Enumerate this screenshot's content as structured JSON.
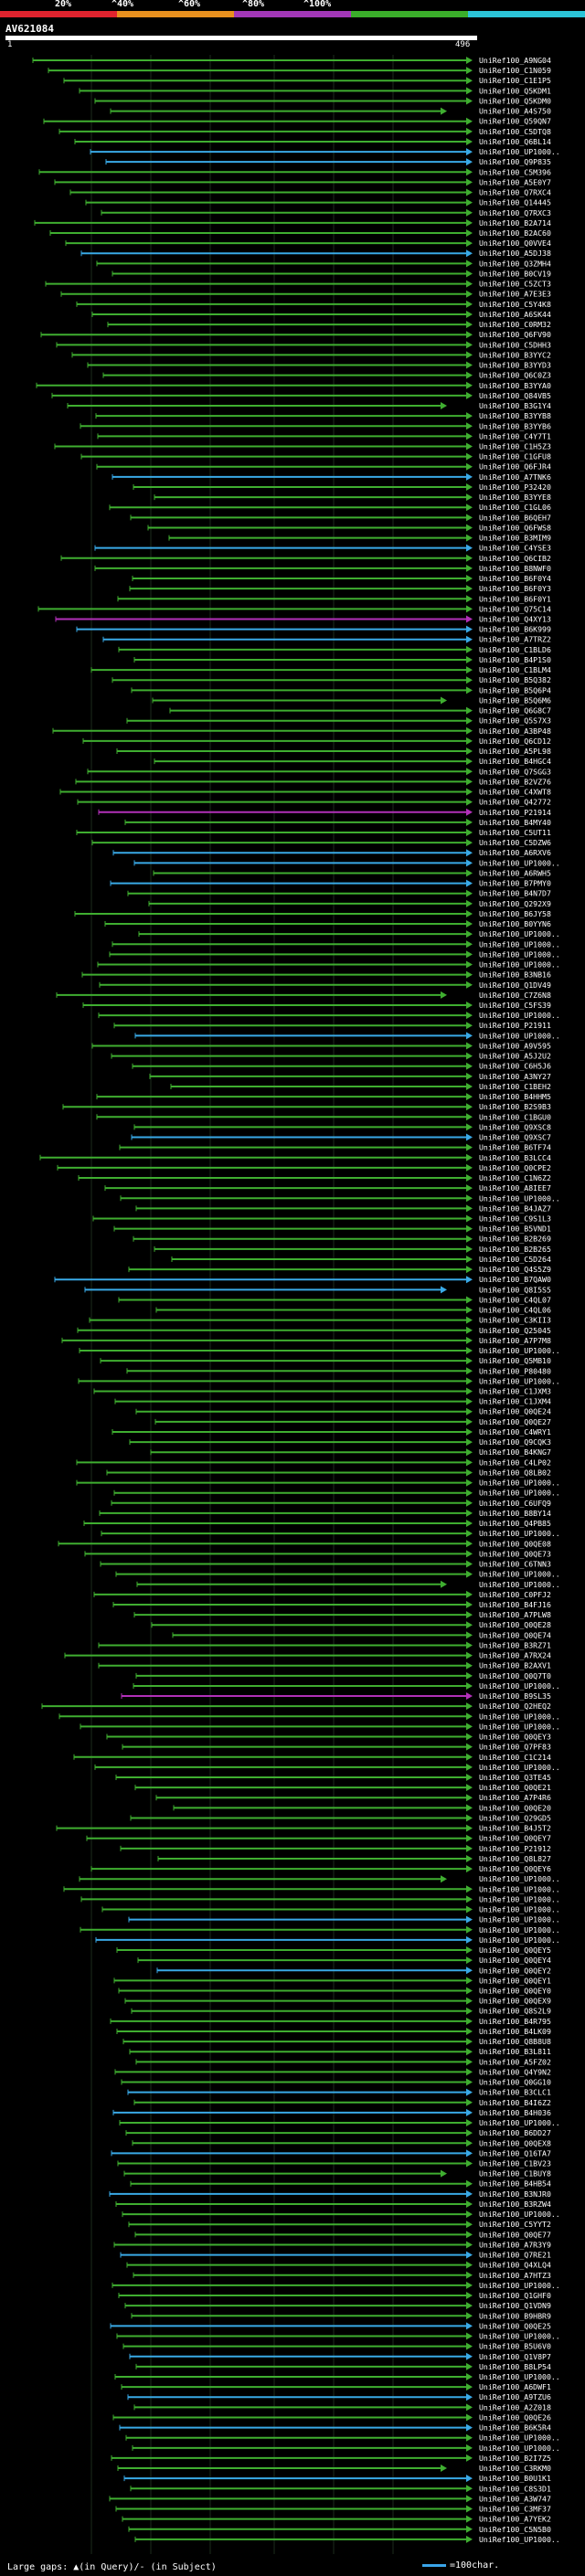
{
  "legend": {
    "segments": [
      {
        "label": "20%",
        "color": "#e0232e"
      },
      {
        "label": "^40%",
        "color": "#e8901e"
      },
      {
        "label": "^60%",
        "color": "#a337b8"
      },
      {
        "label": "^80%",
        "color": "#3aae2a"
      },
      {
        "label": "^100%",
        "color": "#2bc4d8"
      }
    ]
  },
  "query": {
    "id": "AV621084",
    "start": "1",
    "end": "496"
  },
  "footer": {
    "gaps_text": "Large gaps: ▲(in Query)/- (in Subject)",
    "scale_text": "=100char."
  },
  "colors": {
    "green": "#3fae30",
    "cyan": "#39a9e6",
    "magenta": "#b230b9",
    "white": "#ffffff"
  },
  "hits": [
    "UniRef100_A9NG04",
    "UniRef100_C1N059",
    "UniRef100_C1E1P5",
    "UniRef100_Q5KDM1",
    "UniRef100_Q5KDM0",
    "UniRef100_A4S750",
    "UniRef100_Q59QN7",
    "UniRef100_C5DTQ8",
    "UniRef100_Q6BL14",
    "UniRef100_UP1000..",
    "UniRef100_Q9P835",
    "UniRef100_C5M396",
    "UniRef100_A5E0Y7",
    "UniRef100_Q7RXC4",
    "UniRef100_Q14445",
    "UniRef100_Q7RXC3",
    "UniRef100_B2A714",
    "UniRef100_B2AC60",
    "UniRef100_Q0VVE4",
    "UniRef100_A5DJ38",
    "UniRef100_Q3ZMH4",
    "UniRef100_B0CV19",
    "UniRef100_C5ZCT3",
    "UniRef100_A7E3E3",
    "UniRef100_C5Y4K8",
    "UniRef100_A6SK44",
    "UniRef100_C0RM32",
    "UniRef100_Q6FV90",
    "UniRef100_C5DHH3",
    "UniRef100_B3YYC2",
    "UniRef100_B3YYD3",
    "UniRef100_Q6C0Z3",
    "UniRef100_B3YYA0",
    "UniRef100_Q84VB5",
    "UniRef100_B3G1Y4",
    "UniRef100_B3YYB8",
    "UniRef100_B3YYB6",
    "UniRef100_C4Y7T1",
    "UniRef100_C1H5Z3",
    "UniRef100_C1GFU8",
    "UniRef100_Q6FJR4",
    "UniRef100_A7TNK6",
    "UniRef100_P32420",
    "UniRef100_B3YYE8",
    "UniRef100_C1GL06",
    "UniRef100_B6QEH7",
    "UniRef100_Q6FWS8",
    "UniRef100_B3MIM9",
    "UniRef100_C4YSE3",
    "UniRef100_Q6CIB2",
    "UniRef100_B8NWF0",
    "UniRef100_B6F0Y4",
    "UniRef100_B6F0Y3",
    "UniRef100_B6F0Y1",
    "UniRef100_Q75C14",
    "UniRef100_Q4XY13",
    "UniRef100_B6K999",
    "UniRef100_A7TRZ2",
    "UniRef100_C1BLD6",
    "UniRef100_B4P1S0",
    "UniRef100_C1BLM4",
    "UniRef100_B5Q382",
    "UniRef100_B5Q6P4",
    "UniRef100_B5Q6M6",
    "UniRef100_Q6G8C7",
    "UniRef100_Q5S7X3",
    "UniRef100_A3BP48",
    "UniRef100_Q6CD12",
    "UniRef100_A5PL98",
    "UniRef100_B4HGC4",
    "UniRef100_Q7SGG3",
    "UniRef100_B2VZ76",
    "UniRef100_C4XWT8",
    "UniRef100_Q42772",
    "UniRef100_P21914",
    "UniRef100_B4MY40",
    "UniRef100_C5UT11",
    "UniRef100_C5DZW6",
    "UniRef100_A6RXV6",
    "UniRef100_UP1000..",
    "UniRef100_A6RWH5",
    "UniRef100_B7PMY0",
    "UniRef100_B4N7D7",
    "UniRef100_Q292X9",
    "UniRef100_B6JY58",
    "UniRef100_B0YYN6",
    "UniRef100_UP1000..",
    "UniRef100_UP1000..",
    "UniRef100_UP1000..",
    "UniRef100_UP1000..",
    "UniRef100_B3NB16",
    "UniRef100_Q1DV49",
    "UniRef100_C7Z6N8",
    "UniRef100_C5FS39",
    "UniRef100_UP1000..",
    "UniRef100_P21911",
    "UniRef100_UP1000..",
    "UniRef100_A9V595",
    "UniRef100_A5J2U2",
    "UniRef100_C6H5J6",
    "UniRef100_A3NY27",
    "UniRef100_C1BEH2",
    "UniRef100_B4HHM5",
    "UniRef100_B2S9B3",
    "UniRef100_C1BGU0",
    "UniRef100_Q9XSC8",
    "UniRef100_Q9XSC7",
    "UniRef100_B6TF74",
    "UniRef100_B3LCC4",
    "UniRef100_Q0CPE2",
    "UniRef100_C1N6Z2",
    "UniRef100_A8IEE7",
    "UniRef100_UP1000..",
    "UniRef100_B4JAZ7",
    "UniRef100_C9S1L3",
    "UniRef100_B5VND1",
    "UniRef100_B2B269",
    "UniRef100_B2B265",
    "UniRef100_C5D264",
    "UniRef100_Q4S5Z9",
    "UniRef100_B7QAW0",
    "UniRef100_Q8I5S5",
    "UniRef100_C4QL07",
    "UniRef100_C4QL06",
    "UniRef100_C3KII3",
    "UniRef100_Q25045",
    "UniRef100_A7P7M8",
    "UniRef100_UP1000..",
    "UniRef100_Q5MB10",
    "UniRef100_P80480",
    "UniRef100_UP1000..",
    "UniRef100_C1JXM3",
    "UniRef100_C1JXM4",
    "UniRef100_Q0QE24",
    "UniRef100_Q0QE27",
    "UniRef100_C4WRY1",
    "UniRef100_Q9CQK3",
    "UniRef100_B4KNG7",
    "UniRef100_C4LP02",
    "UniRef100_Q8LB02",
    "UniRef100_UP1000..",
    "UniRef100_UP1000..",
    "UniRef100_C6UFQ9",
    "UniRef100_B8BY14",
    "UniRef100_Q4PB85",
    "UniRef100_UP1000..",
    "UniRef100_Q0QE08",
    "UniRef100_Q0QE73",
    "UniRef100_C6TNN3",
    "UniRef100_UP1000..",
    "UniRef100_UP1000..",
    "UniRef100_C0PFJ2",
    "UniRef100_B4FJ16",
    "UniRef100_A7PLW8",
    "UniRef100_Q0QE28",
    "UniRef100_Q0QE74",
    "UniRef100_B3RZ71",
    "UniRef100_A7RX24",
    "UniRef100_B2AXV1",
    "UniRef100_Q0Q7T0",
    "UniRef100_UP1000..",
    "UniRef100_B9SL35",
    "UniRef100_Q2HEQ2",
    "UniRef100_UP1000..",
    "UniRef100_UP1000..",
    "UniRef100_Q0QEY3",
    "UniRef100_Q7PF83",
    "UniRef100_C1C214",
    "UniRef100_UP1000..",
    "UniRef100_Q3TE45",
    "UniRef100_Q0QE21",
    "UniRef100_A7P4R6",
    "UniRef100_Q0QE20",
    "UniRef100_Q29GD5",
    "UniRef100_B4J5T2",
    "UniRef100_Q0QEY7",
    "UniRef100_P21912",
    "UniRef100_Q8L827",
    "UniRef100_Q0QEY6",
    "UniRef100_UP1000..",
    "UniRef100_UP1000..",
    "UniRef100_UP1000..",
    "UniRef100_UP1000..",
    "UniRef100_UP1000..",
    "UniRef100_UP1000..",
    "UniRef100_UP1000..",
    "UniRef100_Q0QEY5",
    "UniRef100_Q0QEY4",
    "UniRef100_Q0QEY2",
    "UniRef100_Q0QEY1",
    "UniRef100_Q0QEY0",
    "UniRef100_Q0QEX9",
    "UniRef100_Q8S2L9",
    "UniRef100_B4R795",
    "UniRef100_B4LK09",
    "UniRef100_Q8B8U8",
    "UniRef100_B3L811",
    "UniRef100_A5FZ02",
    "UniRef100_Q4Y9N2",
    "UniRef100_Q0GG10",
    "UniRef100_B3CLC1",
    "UniRef100_B4I6Z2",
    "UniRef100_B4H036",
    "UniRef100_UP1000..",
    "UniRef100_B6DD27",
    "UniRef100_Q0QEX8",
    "UniRef100_Q16TA7",
    "UniRef100_C1BV23",
    "UniRef100_C1BUY8",
    "UniRef100_B4HB54",
    "UniRef100_B3NJR0",
    "UniRef100_B3RZW4",
    "UniRef100_UP1000..",
    "UniRef100_C5YYT2",
    "UniRef100_Q0QE77",
    "UniRef100_A7R3Y9",
    "UniRef100_Q7RE21",
    "UniRef100_Q4XLQ4",
    "UniRef100_A7HTZ3",
    "UniRef100_UP1000..",
    "UniRef100_Q1GHF0",
    "UniRef100_Q1VDN9",
    "UniRef100_B9HBR9",
    "UniRef100_Q0QE25",
    "UniRef100_UP1000..",
    "UniRef100_B5U6V0",
    "UniRef100_Q1V8P7",
    "UniRef100_B8LP54",
    "UniRef100_UP1000..",
    "UniRef100_A6DWF1",
    "UniRef100_A9TZU6",
    "UniRef100_A2Z018",
    "UniRef100_Q0QE26",
    "UniRef100_B6K5R4",
    "UniRef100_UP1000..",
    "UniRef100_UP1000..",
    "UniRef100_B2I7Z5",
    "UniRef100_C3RKM0",
    "UniRef100_B0U1K1",
    "UniRef100_C8S3D1",
    "UniRef100_A3W747",
    "UniRef100_C3MF37",
    "UniRef100_A7YEK2",
    "UniRef100_C5N5B0",
    "UniRef100_UP1000.."
  ]
}
